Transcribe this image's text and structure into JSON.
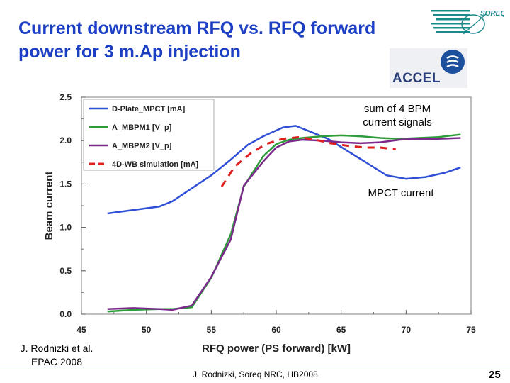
{
  "slide": {
    "title": "Current downstream RFQ vs. RFQ forward power for 3 m.Ap injection",
    "logo_soreq": "SOREQ",
    "logo_accel": "ACCEL",
    "credit_line1": "J. Rodnizki et al.",
    "credit_line2": "EPAC 2008",
    "footer": "J. Rodnizki, Soreq NRC, HB2008",
    "page_number": "25"
  },
  "annotations": {
    "bpm_label": "sum of 4 BPM current signals",
    "mpct_label": "MPCT current"
  },
  "colors": {
    "title": "#1d3fc4",
    "d_plate": "#2f4fd6",
    "a_mbpm1": "#2e9c3a",
    "a_mbpm2": "#7b2a8c",
    "sim": "#e02020"
  },
  "chart_data": {
    "type": "line",
    "title": "",
    "xlabel": "RFQ power (PS forward) [kW]",
    "ylabel": "Beam current",
    "xlim": [
      45,
      75
    ],
    "ylim": [
      0,
      2.5
    ],
    "xticks": [
      45,
      50,
      55,
      60,
      65,
      70,
      75
    ],
    "yticks": [
      0.0,
      0.5,
      1.0,
      1.5,
      2.0,
      2.5
    ],
    "ytick_labels": [
      "0.0",
      "0.5",
      "1.0",
      "1.5",
      "2.0",
      "2.5"
    ],
    "grid": false,
    "legend_position": "top-left",
    "series": [
      {
        "name": "D-Plate_MPCT [mA]",
        "style": "solid",
        "color": "#2f4fd6",
        "x": [
          47,
          49.5,
          51,
          52,
          53.5,
          55,
          56.5,
          57.8,
          59,
          60.5,
          61.5,
          62.5,
          64,
          65.5,
          67,
          68.5,
          70,
          71.5,
          73,
          74.2
        ],
        "y": [
          1.16,
          1.21,
          1.24,
          1.3,
          1.45,
          1.6,
          1.78,
          1.95,
          2.05,
          2.15,
          2.17,
          2.11,
          2.02,
          1.88,
          1.74,
          1.6,
          1.56,
          1.58,
          1.63,
          1.69
        ]
      },
      {
        "name": "A_MBPM1 [V_p]",
        "style": "solid",
        "color": "#2e9c3a",
        "x": [
          47,
          49,
          51,
          52,
          53.5,
          55,
          56.5,
          57.5,
          59,
          60,
          61,
          62,
          63.5,
          65,
          66.5,
          68,
          69.5,
          71,
          72.5,
          74.2
        ],
        "y": [
          0.03,
          0.05,
          0.06,
          0.06,
          0.08,
          0.42,
          0.92,
          1.47,
          1.82,
          1.96,
          2.01,
          2.03,
          2.05,
          2.06,
          2.05,
          2.03,
          2.02,
          2.03,
          2.04,
          2.07
        ]
      },
      {
        "name": "A_MBPM2 [V_p]",
        "style": "solid",
        "color": "#7b2a8c",
        "x": [
          47,
          49,
          51,
          52,
          53.5,
          55,
          56.5,
          57.5,
          59,
          60,
          61,
          62,
          63.5,
          65,
          66.5,
          68,
          69.5,
          71,
          72.5,
          74.2
        ],
        "y": [
          0.06,
          0.07,
          0.06,
          0.05,
          0.1,
          0.43,
          0.86,
          1.48,
          1.76,
          1.92,
          1.99,
          2.01,
          2.0,
          1.98,
          1.97,
          1.98,
          2.01,
          2.02,
          2.02,
          2.03
        ]
      },
      {
        "name": "4D-WB simulation [mA]",
        "style": "dashed",
        "color": "#e02020",
        "x": [
          55.8,
          56.8,
          58,
          59.2,
          60.5,
          61.8,
          63,
          64.2,
          65.5,
          66.8,
          68,
          69.2
        ],
        "y": [
          1.47,
          1.7,
          1.85,
          1.96,
          2.02,
          2.04,
          2.01,
          1.97,
          1.94,
          1.92,
          1.92,
          1.9
        ]
      }
    ]
  }
}
